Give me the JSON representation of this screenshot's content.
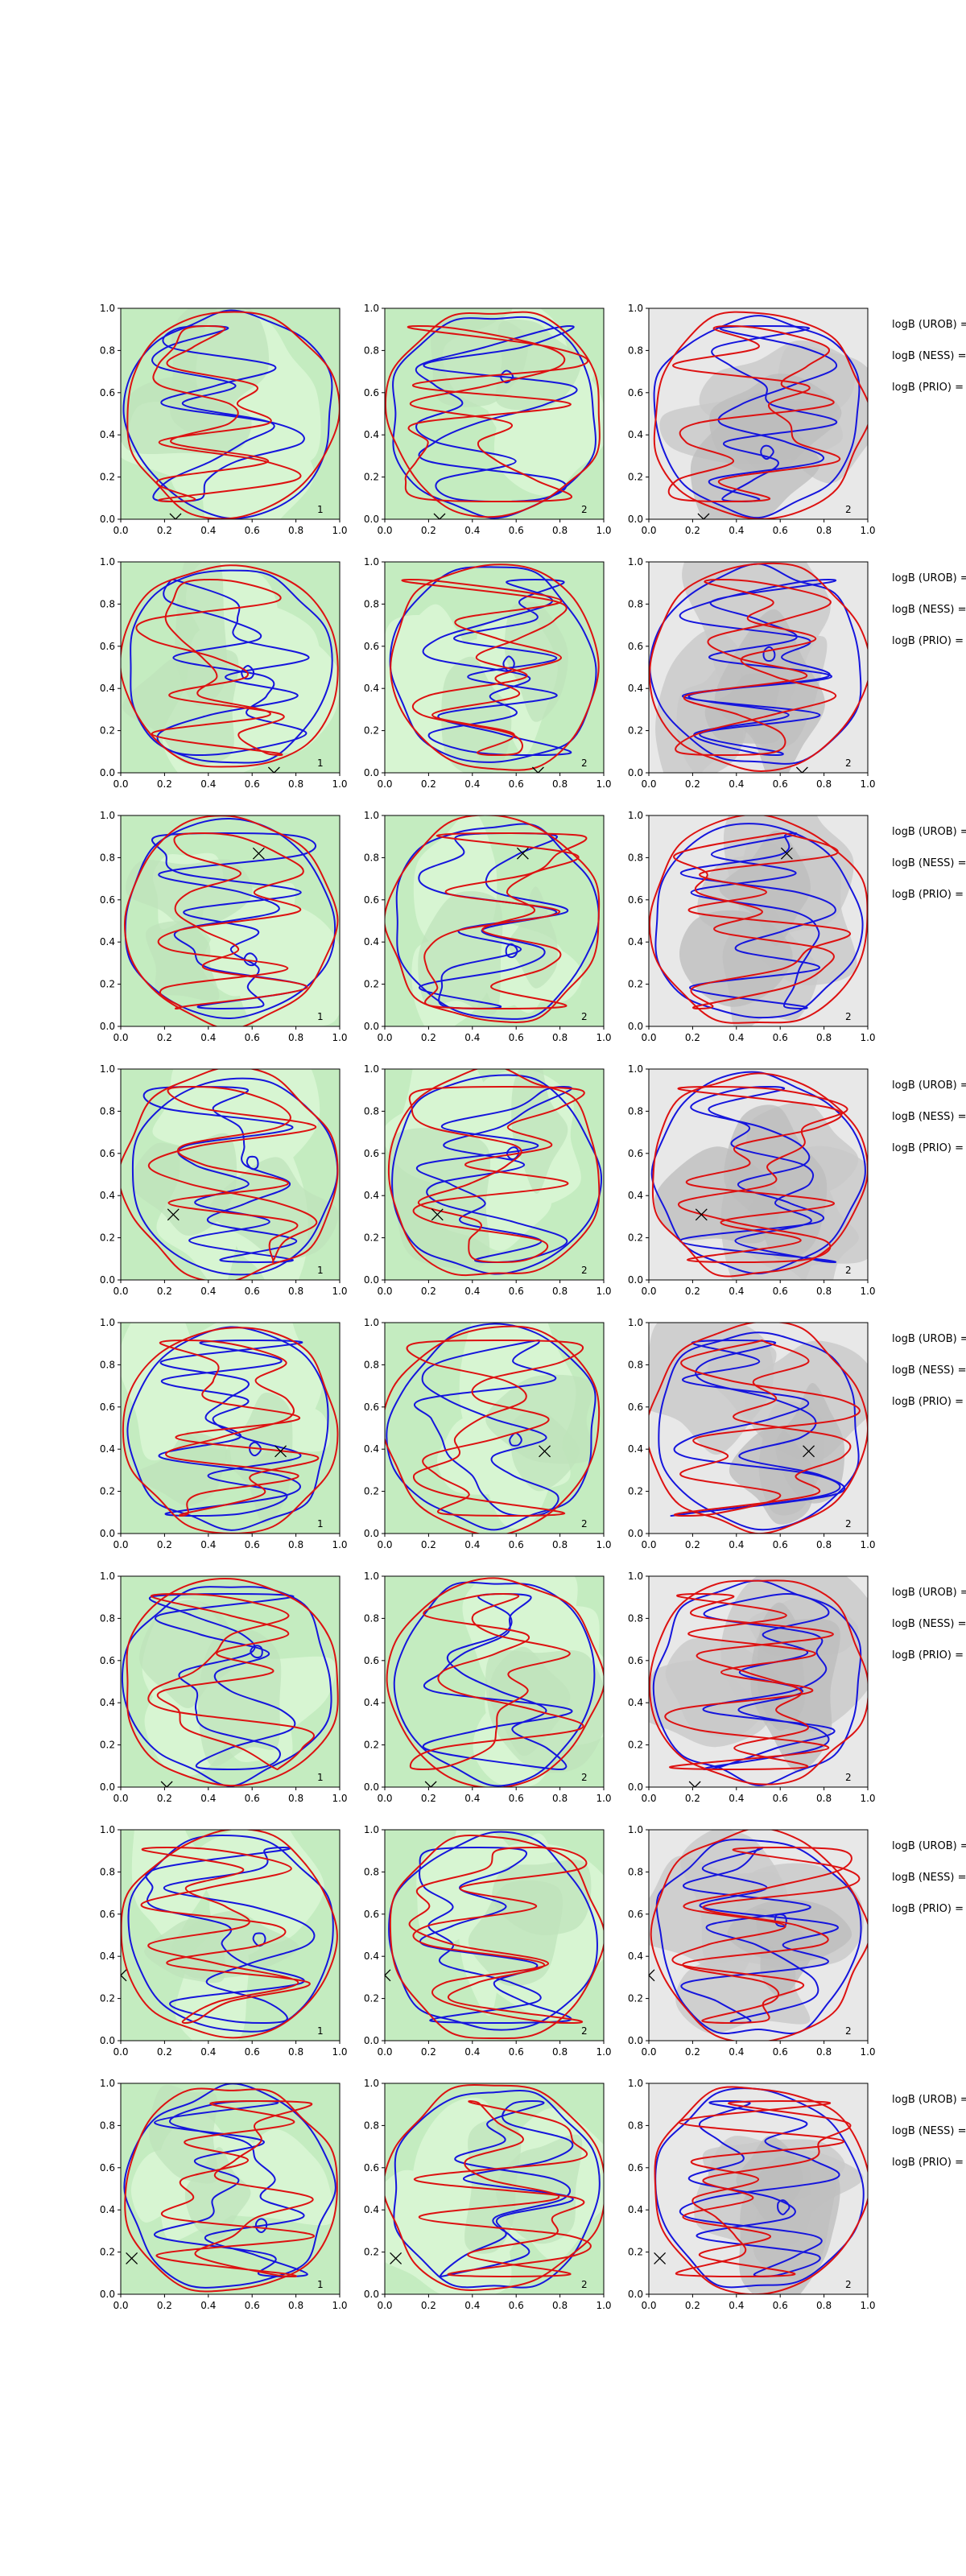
{
  "chart_data": {
    "type": "contour-grid",
    "title": "",
    "rows": 8,
    "cols": 3,
    "xlim": [
      0.0,
      1.0
    ],
    "ylim": [
      0.0,
      1.0
    ],
    "x_ticks": [
      "0.0",
      "0.2",
      "0.4",
      "0.6",
      "0.8",
      "1.0"
    ],
    "y_ticks": [
      "0.0",
      "0.2",
      "0.4",
      "0.6",
      "0.8",
      "1.0"
    ],
    "colors": {
      "blue": "#1515dd",
      "red": "#dd1111",
      "green_light": "#d7f5d2",
      "green_mid": "#c4ecc0",
      "gray_fill": "#c8c8c8",
      "gray_bg": "#e8e8e8"
    },
    "annotation_labels": [
      "logB (UROB) =",
      "logB (NESS) =",
      "logB (PRIO) ="
    ],
    "panel_corner_labels": [
      "1",
      "2",
      "2"
    ],
    "markers_x": [
      [
        0.25,
        0.0
      ],
      [
        0.7,
        0.0
      ],
      [
        0.63,
        0.82
      ],
      [
        0.24,
        0.31
      ],
      [
        0.73,
        0.39
      ],
      [
        0.21,
        0.0
      ],
      [
        0.0,
        0.31
      ],
      [
        0.05,
        0.17
      ]
    ]
  }
}
